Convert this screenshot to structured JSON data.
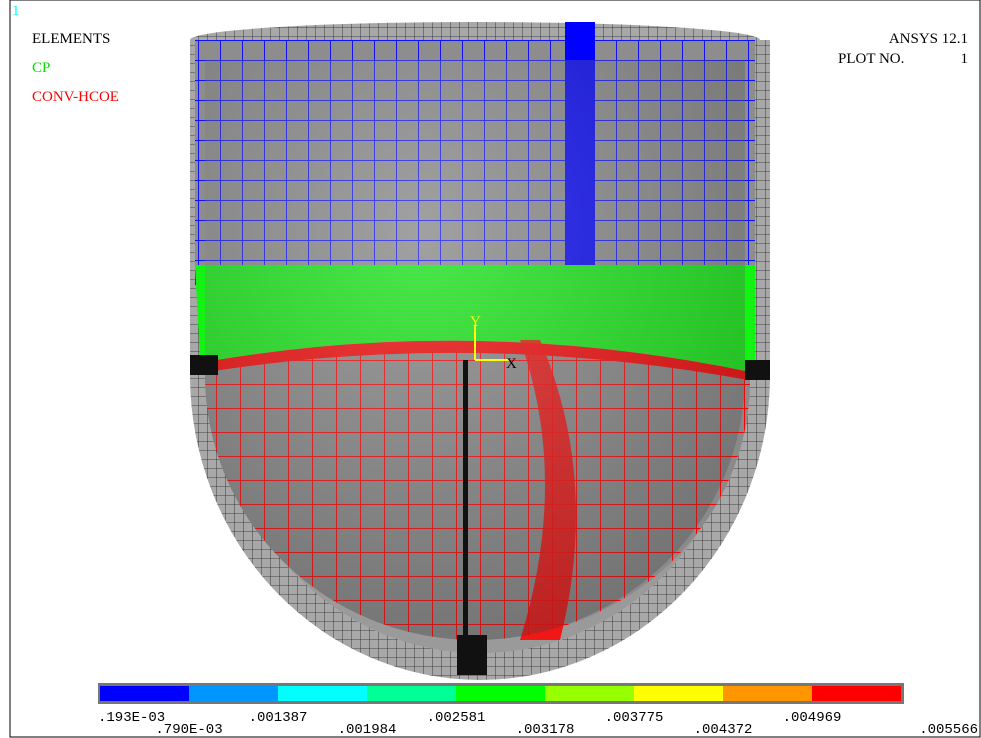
{
  "header": {
    "window_number": "1",
    "labels": [
      {
        "text": "ELEMENTS",
        "color": "#000000"
      },
      {
        "text": "CP",
        "color": "#00dd00"
      },
      {
        "text": "CONV-HCOE",
        "color": "#ff0000"
      }
    ],
    "product": "ANSYS 12.1",
    "plot_label": "PLOT NO.",
    "plot_number": "1"
  },
  "axes": {
    "y": "Y",
    "x": "X"
  },
  "legend": {
    "colors": [
      "#0000ff",
      "#0096ff",
      "#00ffff",
      "#00ff96",
      "#00ff00",
      "#96ff00",
      "#ffff00",
      "#ff9600",
      "#ff0000"
    ],
    "labels": [
      ".193E-03",
      ".790E-03",
      ".001387",
      ".001984",
      ".002581",
      ".003178",
      ".003775",
      ".004372",
      ".004969",
      ".005566"
    ]
  }
}
